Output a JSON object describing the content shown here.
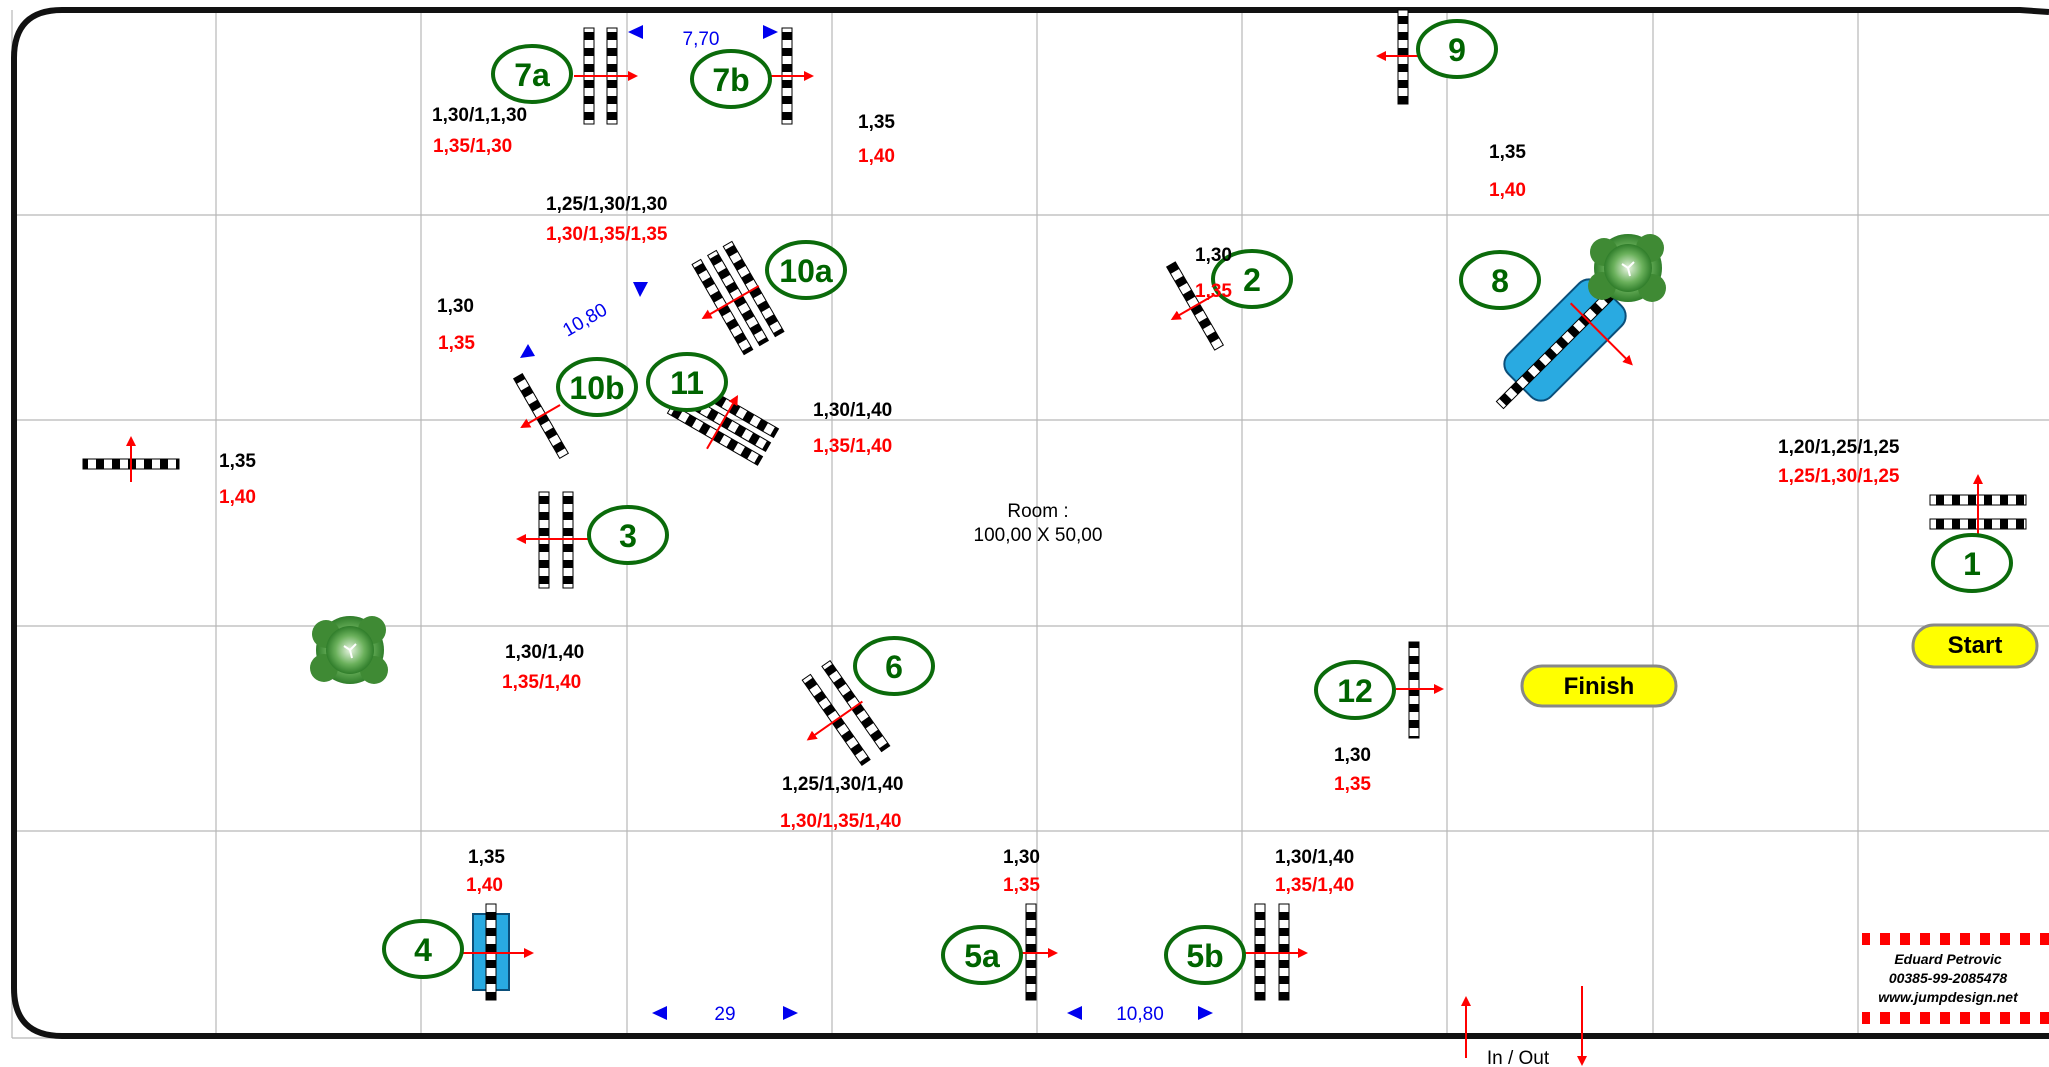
{
  "arena": {
    "room_line1": "Room :",
    "room_line2": "100,00 X 50,00",
    "in_out": "In / Out",
    "start": "Start",
    "finish": "Finish"
  },
  "obstacles": [
    {
      "id": "1",
      "number": "1"
    },
    {
      "id": "2",
      "number": "2"
    },
    {
      "id": "3",
      "number": "3"
    },
    {
      "id": "4",
      "number": "4"
    },
    {
      "id": "5a",
      "number": "5a"
    },
    {
      "id": "5b",
      "number": "5b"
    },
    {
      "id": "6",
      "number": "6"
    },
    {
      "id": "7a",
      "number": "7a"
    },
    {
      "id": "7b",
      "number": "7b"
    },
    {
      "id": "8",
      "number": "8"
    },
    {
      "id": "9",
      "number": "9"
    },
    {
      "id": "10a",
      "number": "10a"
    },
    {
      "id": "10b",
      "number": "10b"
    },
    {
      "id": "11",
      "number": "11"
    },
    {
      "id": "12",
      "number": "12"
    }
  ],
  "heights": [
    {
      "id": "h7a",
      "black": "1,30/1,1,30",
      "red": "1,35/1,30"
    },
    {
      "id": "h7b",
      "black": "1,35",
      "red": "1,40"
    },
    {
      "id": "h9",
      "black": "1,35",
      "red": "1,40"
    },
    {
      "id": "h10a",
      "black": "1,25/1,30/1,30",
      "red": "1,30/1,35/1,35"
    },
    {
      "id": "h10b",
      "black": "1,30",
      "red": "1,35"
    },
    {
      "id": "h2",
      "black": "1,30",
      "red": "1,35"
    },
    {
      "id": "h11",
      "black": "1,30/1,40",
      "red": "1,35/1,40"
    },
    {
      "id": "hleft",
      "black": "1,35",
      "red": "1,40"
    },
    {
      "id": "h1",
      "black": "1,20/1,25/1,25",
      "red": "1,25/1,30/1,25"
    },
    {
      "id": "h3",
      "black": "1,30/1,40",
      "red": "1,35/1,40"
    },
    {
      "id": "h6",
      "black": "1,25/1,30/1,40",
      "red": "1,30/1,35/1,40"
    },
    {
      "id": "h12",
      "black": "1,30",
      "red": "1,35"
    },
    {
      "id": "h4",
      "black": "1,35",
      "red": "1,40"
    },
    {
      "id": "h5a",
      "black": "1,30",
      "red": "1,35"
    },
    {
      "id": "h5b",
      "black": "1,30/1,40",
      "red": "1,35/1,40"
    }
  ],
  "distances": {
    "d7": "7,70",
    "d10": "10,80",
    "d45": "29",
    "d5": "10,80"
  },
  "credit": {
    "name": "Eduard Petrovic",
    "phone": "00385-99-2085478",
    "web": "www.jumpdesign.net"
  }
}
